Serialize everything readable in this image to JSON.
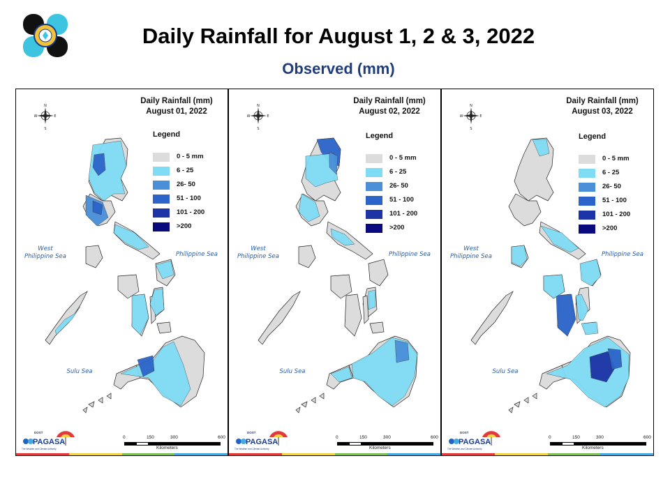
{
  "header": {
    "title": "Daily Rainfall for August 1, 2 & 3, 2022",
    "subtitle": "Observed (mm)"
  },
  "legend": {
    "heading": "Legend",
    "classes": [
      {
        "label": "0 - 5 mm",
        "color": "#dcdcdc"
      },
      {
        "label": "6 - 25",
        "color": "#7fdcf5"
      },
      {
        "label": "26- 50",
        "color": "#4a90d9"
      },
      {
        "label": "51 - 100",
        "color": "#2c64c9"
      },
      {
        "label": "101 - 200",
        "color": "#1c34a5"
      },
      {
        "label": ">200",
        "color": "#0a0a7e"
      }
    ]
  },
  "panels": [
    {
      "title_line1": "Daily Rainfall (mm)",
      "title_line2": "August 01, 2022"
    },
    {
      "title_line1": "Daily Rainfall (mm)",
      "title_line2": "August 02, 2022"
    },
    {
      "title_line1": "Daily Rainfall (mm)",
      "title_line2": "August 03, 2022"
    }
  ],
  "seas": {
    "west": "West\nPhilippine Sea",
    "east": "Philippine Sea",
    "sulu": "Sulu Sea"
  },
  "scale": {
    "ticks": [
      "0",
      "150",
      "300",
      "600"
    ],
    "unit": "Kilometers"
  },
  "compass": {
    "n": "N",
    "s": "S",
    "e": "E",
    "w": "W"
  },
  "branding": {
    "name": "PAGASA",
    "prefix": "DOST",
    "tag": "The Weather and Climate Authority"
  },
  "stripe_colors": [
    "#e23a3a",
    "#f1d348",
    "#7fbf5a",
    "#46a9e0"
  ]
}
